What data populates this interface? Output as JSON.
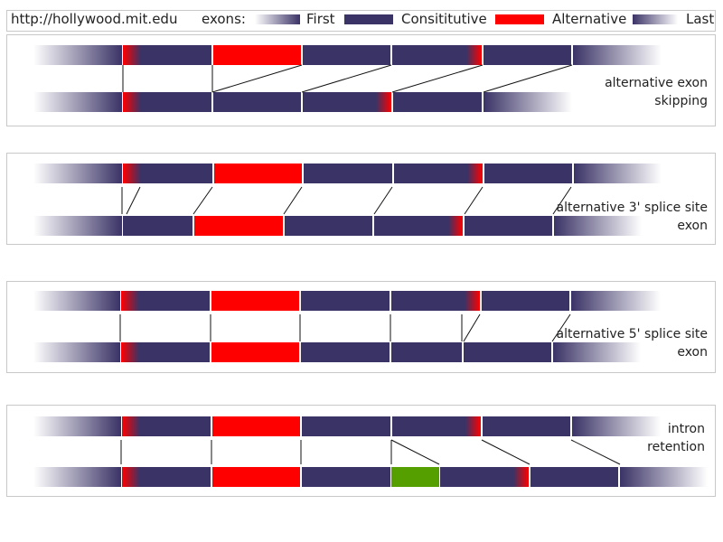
{
  "header": {
    "url": "http://hollywood.mit.edu",
    "legend_title": "exons:",
    "legend": {
      "first": "First",
      "constitutive": "Consititutive",
      "alternative": "Alternative",
      "last": "Last"
    }
  },
  "colors": {
    "constitutive": "#3a3366",
    "alternative": "#ff0000",
    "retained_intron": "#55a000",
    "fade": "#ffffff"
  },
  "panels": [
    {
      "label_lines": [
        "alternative exon",
        "skipping"
      ]
    },
    {
      "label_lines": [
        "alternative 3' splice site",
        "exon"
      ]
    },
    {
      "label_lines": [
        "alternative 5' splice site",
        "exon"
      ]
    },
    {
      "label_lines": [
        "intron",
        "retention"
      ]
    }
  ]
}
